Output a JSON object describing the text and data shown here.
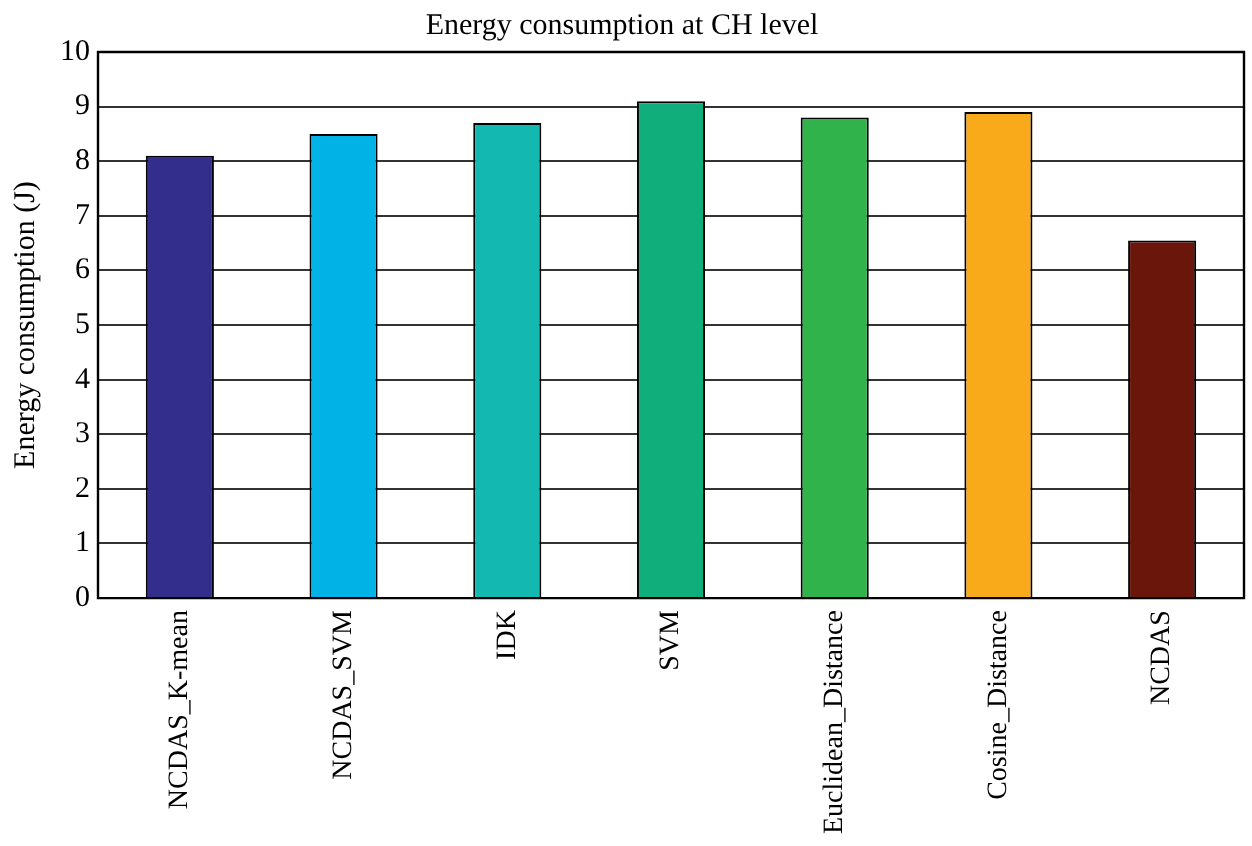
{
  "chart_data": {
    "type": "bar",
    "title": "Energy consumption at CH level",
    "ylabel": "Energy consumption (J)",
    "categories": [
      "NCDAS_K-mean",
      "NCDAS_SVM",
      "IDK",
      "SVM",
      "Euclidean_Distance",
      "Cosine_Distance",
      "NCDAS"
    ],
    "values": [
      8.1,
      8.5,
      8.7,
      9.1,
      8.8,
      8.9,
      6.55
    ],
    "colors": [
      "#332d8c",
      "#00b2e6",
      "#13b8b0",
      "#0fae7a",
      "#2fb34a",
      "#f8aa1b",
      "#6a160a"
    ],
    "ylim": [
      0,
      10
    ],
    "yticks": [
      0,
      1,
      2,
      3,
      4,
      5,
      6,
      7,
      8,
      9,
      10
    ],
    "grid": "y"
  }
}
